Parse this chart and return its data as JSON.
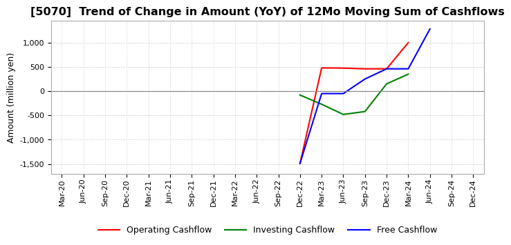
{
  "title": "[5070]  Trend of Change in Amount (YoY) of 12Mo Moving Sum of Cashflows",
  "ylabel": "Amount (million yen)",
  "title_fontsize": 11.5,
  "label_fontsize": 9,
  "tick_fontsize": 8,
  "ylim": [
    -1700,
    1450
  ],
  "yticks": [
    -1500,
    -1000,
    -500,
    0,
    500,
    1000
  ],
  "x_labels": [
    "Mar-20",
    "Jun-20",
    "Sep-20",
    "Dec-20",
    "Mar-21",
    "Jun-21",
    "Sep-21",
    "Dec-21",
    "Mar-22",
    "Jun-22",
    "Sep-22",
    "Dec-22",
    "Mar-23",
    "Jun-23",
    "Sep-23",
    "Dec-23",
    "Mar-24",
    "Jun-24",
    "Sep-24",
    "Dec-24"
  ],
  "operating": {
    "x": [
      11,
      12,
      13,
      14,
      15,
      16
    ],
    "y": [
      -1490,
      480,
      475,
      460,
      460,
      1000
    ],
    "color": "#ff0000",
    "label": "Operating Cashflow"
  },
  "investing": {
    "x": [
      11,
      12,
      13,
      14,
      15,
      16
    ],
    "y": [
      -80,
      -270,
      -480,
      -420,
      150,
      350
    ],
    "color": "#008000",
    "label": "Investing Cashflow"
  },
  "free": {
    "x": [
      11,
      12,
      13,
      14,
      15,
      16,
      17
    ],
    "y": [
      -1490,
      -50,
      -50,
      250,
      460,
      460,
      1280
    ],
    "color": "#0000ff",
    "label": "Free Cashflow"
  },
  "grid_color": "#bbbbbb",
  "zeroline_color": "#888888",
  "bg_color": "#ffffff"
}
